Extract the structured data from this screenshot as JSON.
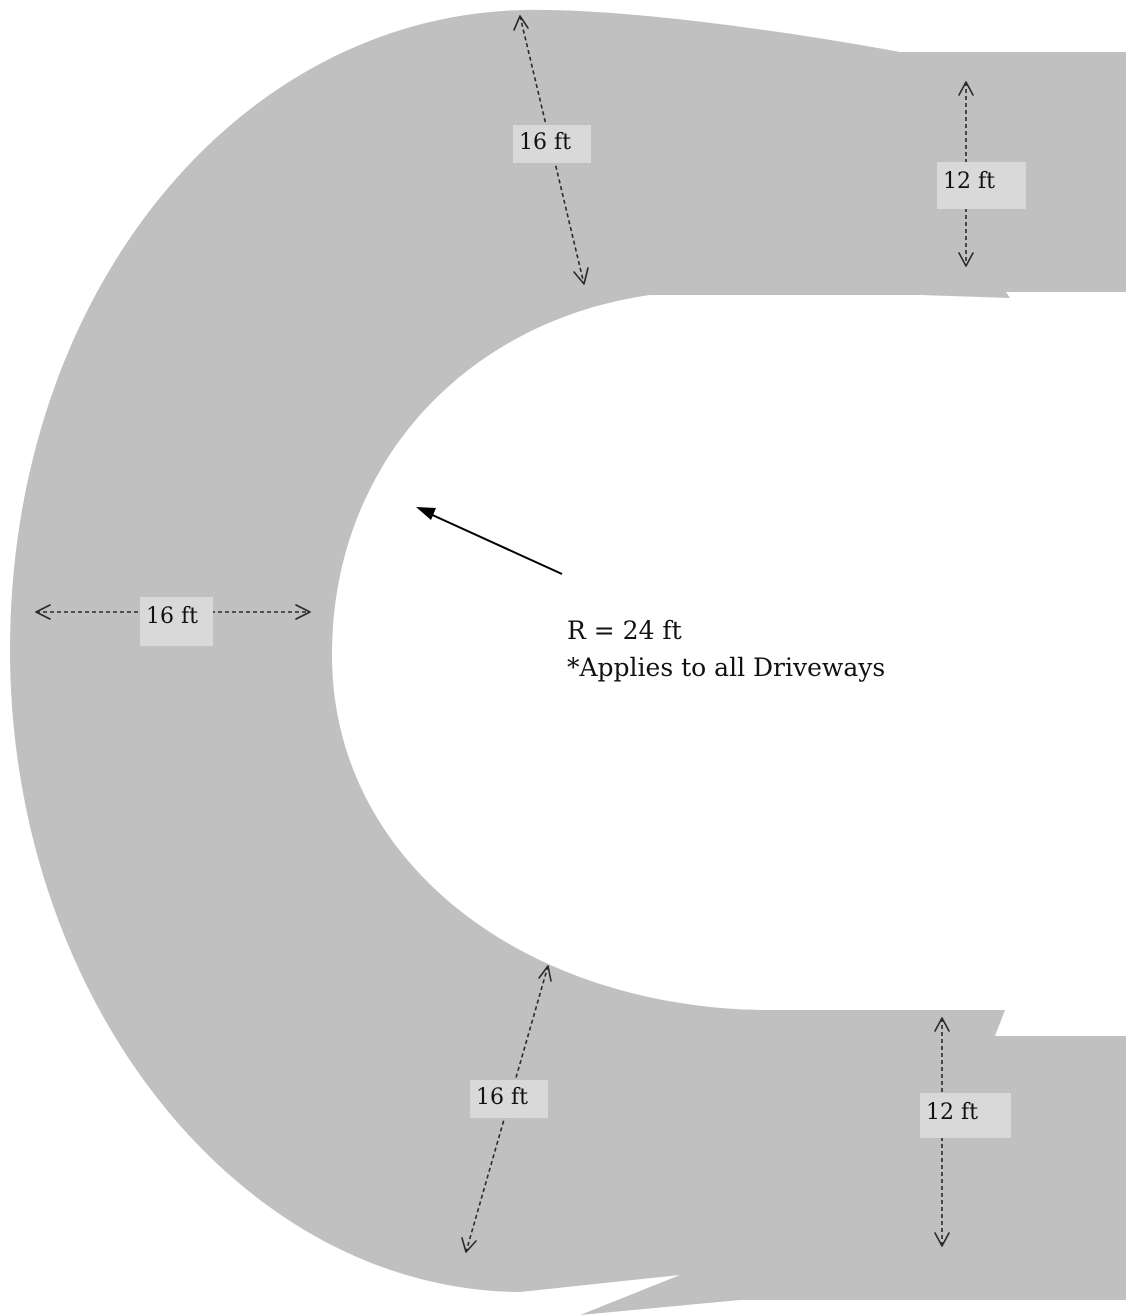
{
  "colors": {
    "road": "#c0c0c0",
    "label_background": "#d9d9d9",
    "dimension_line": "#2a2a2a"
  },
  "dimensions": {
    "top_curve_width": "16 ft",
    "top_straight_width": "12 ft",
    "middle_width": "16 ft",
    "bottom_curve_width": "16 ft",
    "bottom_straight_width": "12 ft"
  },
  "note": {
    "radius": "R = 24 ft",
    "applies": "*Applies to all Driveways"
  }
}
